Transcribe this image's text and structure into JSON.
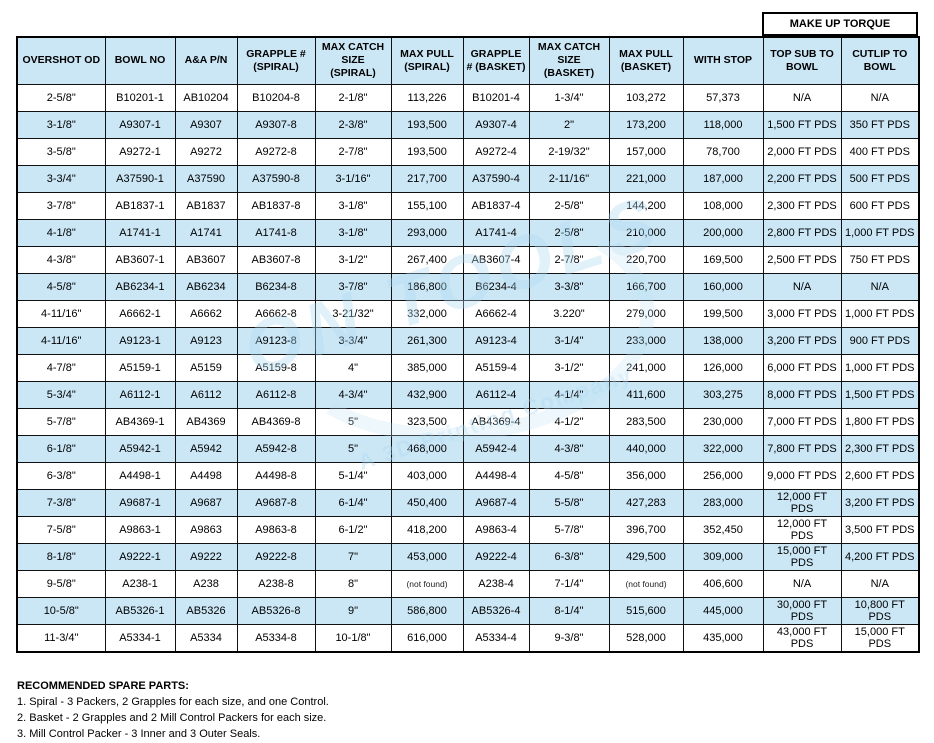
{
  "torque_box": {
    "label": "MAKE UP TORQUE"
  },
  "watermark": {
    "line1": "ON TOOLS",
    "line2": "A 3D Printing Company"
  },
  "colors": {
    "header_bg": "#cbe7f6",
    "alt_row_bg": "#cbe7f6",
    "border": "#111111",
    "watermark": "#b9dff2"
  },
  "table": {
    "headers": [
      "OVERSHOT OD",
      "BOWL NO",
      "A&A P/N",
      "GRAPPLE # (SPIRAL)",
      "MAX CATCH SIZE (SPIRAL)",
      "MAX PULL (SPIRAL)",
      "GRAPPLE # (BASKET)",
      "MAX CATCH SIZE (BASKET)",
      "MAX PULL (BASKET)",
      "WITH STOP",
      "TOP SUB TO BOWL",
      "CUTLIP TO BOWL"
    ],
    "rows": [
      [
        "2-5/8\"",
        "B10201-1",
        "AB10204",
        "B10204-8",
        "2-1/8\"",
        "113,226",
        "B10201-4",
        "1-3/4\"",
        "103,272",
        "57,373",
        "N/A",
        "N/A"
      ],
      [
        "3-1/8\"",
        "A9307-1",
        "A9307",
        "A9307-8",
        "2-3/8\"",
        "193,500",
        "A9307-4",
        "2\"",
        "173,200",
        "118,000",
        "1,500 FT PDS",
        "350 FT PDS"
      ],
      [
        "3-5/8\"",
        "A9272-1",
        "A9272",
        "A9272-8",
        "2-7/8\"",
        "193,500",
        "A9272-4",
        "2-19/32\"",
        "157,000",
        "78,700",
        "2,000 FT PDS",
        "400 FT PDS"
      ],
      [
        "3-3/4\"",
        "A37590-1",
        "A37590",
        "A37590-8",
        "3-1/16\"",
        "217,700",
        "A37590-4",
        "2-11/16\"",
        "221,000",
        "187,000",
        "2,200 FT PDS",
        "500 FT PDS"
      ],
      [
        "3-7/8\"",
        "AB1837-1",
        "AB1837",
        "AB1837-8",
        "3-1/8\"",
        "155,100",
        "AB1837-4",
        "2-5/8\"",
        "144,200",
        "108,000",
        "2,300 FT PDS",
        "600 FT PDS"
      ],
      [
        "4-1/8\"",
        "A1741-1",
        "A1741",
        "A1741-8",
        "3-1/8\"",
        "293,000",
        "A1741-4",
        "2-5/8\"",
        "210,000",
        "200,000",
        "2,800 FT PDS",
        "1,000 FT PDS"
      ],
      [
        "4-3/8\"",
        "AB3607-1",
        "AB3607",
        "AB3607-8",
        "3-1/2\"",
        "267,400",
        "AB3607-4",
        "2-7/8\"",
        "220,700",
        "169,500",
        "2,500 FT PDS",
        "750 FT PDS"
      ],
      [
        "4-5/8\"",
        "AB6234-1",
        "AB6234",
        "B6234-8",
        "3-7/8\"",
        "186,800",
        "B6234-4",
        "3-3/8\"",
        "166,700",
        "160,000",
        "N/A",
        "N/A"
      ],
      [
        "4-11/16\"",
        "A6662-1",
        "A6662",
        "A6662-8",
        "3-21/32\"",
        "332,000",
        "A6662-4",
        "3.220\"",
        "279,000",
        "199,500",
        "3,000 FT PDS",
        "1,000 FT PDS"
      ],
      [
        "4-11/16\"",
        "A9123-1",
        "A9123",
        "A9123-8",
        "3-3/4\"",
        "261,300",
        "A9123-4",
        "3-1/4\"",
        "233,000",
        "138,000",
        "3,200 FT PDS",
        "900 FT PDS"
      ],
      [
        "4-7/8\"",
        "A5159-1",
        "A5159",
        "A5159-8",
        "4\"",
        "385,000",
        "A5159-4",
        "3-1/2\"",
        "241,000",
        "126,000",
        "6,000 FT PDS",
        "1,000 FT PDS"
      ],
      [
        "5-3/4\"",
        "A6112-1",
        "A6112",
        "A6112-8",
        "4-3/4\"",
        "432,900",
        "A6112-4",
        "4-1/4\"",
        "411,600",
        "303,275",
        "8,000 FT PDS",
        "1,500 FT PDS"
      ],
      [
        "5-7/8\"",
        "AB4369-1",
        "AB4369",
        "AB4369-8",
        "5\"",
        "323,500",
        "AB4369-4",
        "4-1/2\"",
        "283,500",
        "230,000",
        "7,000 FT PDS",
        "1,800 FT PDS"
      ],
      [
        "6-1/8\"",
        "A5942-1",
        "A5942",
        "A5942-8",
        "5\"",
        "468,000",
        "A5942-4",
        "4-3/8\"",
        "440,000",
        "322,000",
        "7,800 FT PDS",
        "2,300 FT PDS"
      ],
      [
        "6-3/8\"",
        "A4498-1",
        "A4498",
        "A4498-8",
        "5-1/4\"",
        "403,000",
        "A4498-4",
        "4-5/8\"",
        "356,000",
        "256,000",
        "9,000 FT PDS",
        "2,600 FT PDS"
      ],
      [
        "7-3/8\"",
        "A9687-1",
        "A9687",
        "A9687-8",
        "6-1/4\"",
        "450,400",
        "A9687-4",
        "5-5/8\"",
        "427,283",
        "283,000",
        "12,000 FT PDS",
        "3,200 FT PDS"
      ],
      [
        "7-5/8\"",
        "A9863-1",
        "A9863",
        "A9863-8",
        "6-1/2\"",
        "418,200",
        "A9863-4",
        "5-7/8\"",
        "396,700",
        "352,450",
        "12,000 FT PDS",
        "3,500 FT PDS"
      ],
      [
        "8-1/8\"",
        "A9222-1",
        "A9222",
        "A9222-8",
        "7\"",
        "453,000",
        "A9222-4",
        "6-3/8\"",
        "429,500",
        "309,000",
        "15,000 FT PDS",
        "4,200 FT PDS"
      ],
      [
        "9-5/8\"",
        "A238-1",
        "A238",
        "A238-8",
        "8\"",
        "(not found)",
        "A238-4",
        "7-1/4\"",
        "(not found)",
        "406,600",
        "N/A",
        "N/A"
      ],
      [
        "10-5/8\"",
        "AB5326-1",
        "AB5326",
        "AB5326-8",
        "9\"",
        "586,800",
        "AB5326-4",
        "8-1/4\"",
        "515,600",
        "445,000",
        "30,000 FT PDS",
        "10,800 FT PDS"
      ],
      [
        "11-3/4\"",
        "A5334-1",
        "A5334",
        "A5334-8",
        "10-1/8\"",
        "616,000",
        "A5334-4",
        "9-3/8\"",
        "528,000",
        "435,000",
        "43,000 FT PDS",
        "15,000 FT PDS"
      ]
    ]
  },
  "notes": {
    "title": "RECOMMENDED SPARE PARTS:",
    "items": [
      "1. Spiral - 3 Packers, 2 Grapples for each size, and one Control.",
      "2. Basket - 2 Grapples and 2 Mill Control Packers for each size.",
      "3. Mill Control Packer - 3 Inner and 3 Outer Seals."
    ]
  }
}
